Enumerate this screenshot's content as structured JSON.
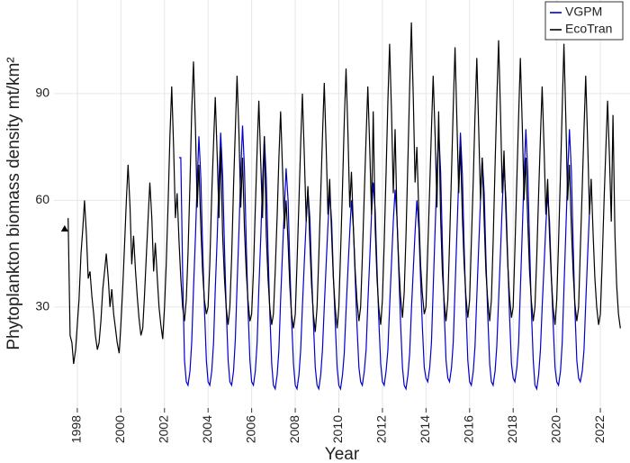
{
  "chart_data": {
    "type": "line",
    "xlabel": "Year",
    "ylabel": "Phytoplankton biomass density mt/km²",
    "xlim": [
      1996.93,
      2023.36
    ],
    "ylim": [
      1.6,
      116.3
    ],
    "xticks": [
      1998,
      2000,
      2002,
      2004,
      2006,
      2008,
      2010,
      2012,
      2014,
      2016,
      2018,
      2020,
      2022
    ],
    "yticks": [
      30,
      60,
      90
    ],
    "grid": true,
    "legend": "top-right",
    "marker": {
      "x": 1997.42,
      "y": 52,
      "color": "#000000"
    },
    "x": [
      1997.58,
      1997.67,
      1997.75,
      1997.83,
      1997.92,
      1998,
      1998.08,
      1998.17,
      1998.25,
      1998.33,
      1998.42,
      1998.5,
      1998.58,
      1998.67,
      1998.75,
      1998.83,
      1998.92,
      1999,
      1999.08,
      1999.17,
      1999.25,
      1999.33,
      1999.42,
      1999.5,
      1999.58,
      1999.67,
      1999.75,
      1999.83,
      1999.92,
      2000,
      2000.08,
      2000.17,
      2000.25,
      2000.33,
      2000.42,
      2000.5,
      2000.58,
      2000.67,
      2000.75,
      2000.83,
      2000.92,
      2001,
      2001.08,
      2001.17,
      2001.25,
      2001.33,
      2001.42,
      2001.5,
      2001.58,
      2001.67,
      2001.75,
      2001.83,
      2001.92,
      2002,
      2002.08,
      2002.17,
      2002.25,
      2002.33,
      2002.42,
      2002.5,
      2002.58,
      2002.67,
      2002.75,
      2002.83,
      2002.92,
      2003,
      2003.08,
      2003.17,
      2003.25,
      2003.33,
      2003.42,
      2003.5,
      2003.58,
      2003.67,
      2003.75,
      2003.83,
      2003.92,
      2004,
      2004.08,
      2004.17,
      2004.25,
      2004.33,
      2004.42,
      2004.5,
      2004.58,
      2004.67,
      2004.75,
      2004.83,
      2004.92,
      2005,
      2005.08,
      2005.17,
      2005.25,
      2005.33,
      2005.42,
      2005.5,
      2005.58,
      2005.67,
      2005.75,
      2005.83,
      2005.92,
      2006,
      2006.08,
      2006.17,
      2006.25,
      2006.33,
      2006.42,
      2006.5,
      2006.58,
      2006.67,
      2006.75,
      2006.83,
      2006.92,
      2007,
      2007.08,
      2007.17,
      2007.25,
      2007.33,
      2007.42,
      2007.5,
      2007.58,
      2007.67,
      2007.75,
      2007.83,
      2007.92,
      2008,
      2008.08,
      2008.17,
      2008.25,
      2008.33,
      2008.42,
      2008.5,
      2008.58,
      2008.67,
      2008.75,
      2008.83,
      2008.92,
      2009,
      2009.08,
      2009.17,
      2009.25,
      2009.33,
      2009.42,
      2009.5,
      2009.58,
      2009.67,
      2009.75,
      2009.83,
      2009.92,
      2010,
      2010.08,
      2010.17,
      2010.25,
      2010.33,
      2010.42,
      2010.5,
      2010.58,
      2010.67,
      2010.75,
      2010.83,
      2010.92,
      2011,
      2011.08,
      2011.17,
      2011.25,
      2011.33,
      2011.42,
      2011.5,
      2011.58,
      2011.67,
      2011.75,
      2011.83,
      2011.92,
      2012,
      2012.08,
      2012.17,
      2012.25,
      2012.33,
      2012.42,
      2012.5,
      2012.58,
      2012.67,
      2012.75,
      2012.83,
      2012.92,
      2013,
      2013.08,
      2013.17,
      2013.25,
      2013.33,
      2013.42,
      2013.5,
      2013.58,
      2013.67,
      2013.75,
      2013.83,
      2013.92,
      2014,
      2014.08,
      2014.17,
      2014.25,
      2014.33,
      2014.42,
      2014.5,
      2014.58,
      2014.67,
      2014.75,
      2014.83,
      2014.92,
      2015,
      2015.08,
      2015.17,
      2015.25,
      2015.33,
      2015.42,
      2015.5,
      2015.58,
      2015.67,
      2015.75,
      2015.83,
      2015.92,
      2016,
      2016.08,
      2016.17,
      2016.25,
      2016.33,
      2016.42,
      2016.5,
      2016.58,
      2016.67,
      2016.75,
      2016.83,
      2016.92,
      2017,
      2017.08,
      2017.17,
      2017.25,
      2017.33,
      2017.42,
      2017.5,
      2017.58,
      2017.67,
      2017.75,
      2017.83,
      2017.92,
      2018,
      2018.08,
      2018.17,
      2018.25,
      2018.33,
      2018.42,
      2018.5,
      2018.58,
      2018.67,
      2018.75,
      2018.83,
      2018.92,
      2019,
      2019.08,
      2019.17,
      2019.25,
      2019.33,
      2019.42,
      2019.5,
      2019.58,
      2019.67,
      2019.75,
      2019.83,
      2019.92,
      2020,
      2020.08,
      2020.17,
      2020.25,
      2020.33,
      2020.42,
      2020.5,
      2020.58,
      2020.67,
      2020.75,
      2020.83,
      2020.92,
      2021,
      2021.08,
      2021.17,
      2021.25,
      2021.33,
      2021.42,
      2021.5,
      2021.58,
      2021.67,
      2021.75,
      2021.83,
      2021.92,
      2022,
      2022.08,
      2022.17,
      2022.25,
      2022.33,
      2022.42,
      2022.5,
      2022.58,
      2022.67,
      2022.75,
      2022.83,
      2022.92
    ],
    "series": [
      {
        "name": "VGPM",
        "color": "#0000cc",
        "values": [
          null,
          null,
          null,
          null,
          null,
          null,
          null,
          null,
          null,
          null,
          null,
          null,
          null,
          null,
          null,
          null,
          null,
          null,
          null,
          null,
          null,
          null,
          null,
          null,
          null,
          null,
          null,
          null,
          null,
          null,
          null,
          null,
          null,
          null,
          null,
          null,
          null,
          null,
          null,
          null,
          null,
          null,
          null,
          null,
          null,
          null,
          null,
          null,
          null,
          null,
          null,
          null,
          null,
          null,
          null,
          null,
          null,
          null,
          null,
          null,
          null,
          72,
          72,
          40,
          15,
          9,
          8,
          12,
          20,
          35,
          50,
          65,
          78,
          66,
          47,
          30,
          15,
          9,
          8,
          12,
          20,
          35,
          50,
          66,
          79,
          67,
          47,
          30,
          15,
          9,
          8,
          12,
          21,
          36,
          52,
          68,
          81,
          69,
          48,
          30,
          15,
          9,
          8,
          12,
          20,
          35,
          50,
          65,
          78,
          66,
          46,
          29,
          14,
          8,
          7,
          11,
          18,
          32,
          46,
          58,
          69,
          60,
          42,
          27,
          14,
          8,
          7,
          11,
          18,
          30,
          43,
          54,
          63,
          55,
          40,
          26,
          13,
          8,
          7,
          11,
          18,
          30,
          42,
          53,
          62,
          54,
          39,
          26,
          13,
          8,
          7,
          11,
          17,
          29,
          41,
          51,
          60,
          52,
          38,
          25,
          13,
          9,
          8,
          12,
          18,
          31,
          44,
          56,
          65,
          57,
          41,
          27,
          14,
          9,
          8,
          12,
          18,
          30,
          43,
          54,
          63,
          55,
          40,
          26,
          13,
          8,
          7,
          11,
          17,
          29,
          41,
          51,
          60,
          52,
          38,
          25,
          13,
          10,
          9,
          13,
          20,
          35,
          52,
          67,
          80,
          68,
          48,
          30,
          15,
          10,
          9,
          13,
          20,
          35,
          51,
          66,
          79,
          67,
          47,
          30,
          15,
          9,
          8,
          12,
          19,
          33,
          47,
          60,
          72,
          62,
          44,
          28,
          14,
          9,
          8,
          12,
          19,
          32,
          46,
          59,
          70,
          60,
          43,
          28,
          14,
          10,
          9,
          13,
          20,
          35,
          52,
          67,
          80,
          68,
          48,
          30,
          15,
          8,
          7,
          11,
          18,
          30,
          42,
          53,
          62,
          54,
          39,
          26,
          13,
          9,
          8,
          12,
          20,
          35,
          52,
          67,
          80,
          68,
          48,
          30,
          15,
          10,
          9,
          12,
          18,
          31,
          45,
          57,
          66,
          null,
          null,
          null,
          null,
          null,
          null,
          null,
          null,
          null,
          null,
          null,
          null,
          null,
          null,
          null,
          null
        ]
      },
      {
        "name": "EcoTran",
        "color": "#000000",
        "values": [
          55,
          22,
          20,
          14,
          18,
          25,
          32,
          45,
          52,
          60,
          50,
          38,
          40,
          33,
          28,
          22,
          18,
          20,
          26,
          35,
          40,
          45,
          38,
          30,
          35,
          28,
          24,
          20,
          17,
          25,
          35,
          48,
          60,
          70,
          58,
          42,
          50,
          40,
          33,
          27,
          22,
          24,
          33,
          45,
          55,
          65,
          55,
          40,
          48,
          38,
          30,
          25,
          21,
          30,
          42,
          60,
          78,
          92,
          75,
          55,
          62,
          48,
          38,
          30,
          26,
          32,
          45,
          65,
          85,
          99,
          80,
          58,
          70,
          52,
          40,
          32,
          28,
          30,
          42,
          62,
          76,
          89,
          72,
          55,
          75,
          50,
          38,
          30,
          25,
          30,
          44,
          64,
          80,
          95,
          78,
          58,
          72,
          52,
          40,
          32,
          26,
          28,
          40,
          58,
          74,
          88,
          70,
          55,
          78,
          50,
          38,
          30,
          25,
          28,
          40,
          56,
          72,
          85,
          68,
          52,
          60,
          48,
          36,
          28,
          24,
          28,
          42,
          60,
          76,
          90,
          72,
          54,
          64,
          48,
          36,
          28,
          23,
          30,
          44,
          62,
          78,
          93,
          75,
          56,
          66,
          50,
          38,
          30,
          24,
          30,
          45,
          64,
          82,
          97,
          78,
          58,
          68,
          52,
          40,
          32,
          26,
          30,
          44,
          62,
          78,
          92,
          74,
          56,
          85,
          52,
          38,
          30,
          25,
          32,
          48,
          68,
          88,
          104,
          84,
          62,
          80,
          55,
          42,
          33,
          27,
          34,
          50,
          72,
          92,
          110,
          88,
          65,
          75,
          56,
          42,
          34,
          28,
          30,
          46,
          64,
          80,
          95,
          78,
          58,
          85,
          55,
          40,
          32,
          26,
          32,
          48,
          68,
          86,
          103,
          82,
          62,
          75,
          55,
          42,
          33,
          27,
          32,
          48,
          66,
          84,
          100,
          80,
          60,
          72,
          54,
          40,
          32,
          26,
          32,
          48,
          70,
          88,
          105,
          84,
          62,
          74,
          56,
          42,
          33,
          27,
          30,
          46,
          66,
          84,
          100,
          80,
          60,
          72,
          54,
          40,
          32,
          26,
          30,
          44,
          62,
          78,
          92,
          74,
          56,
          66,
          50,
          38,
          30,
          25,
          32,
          48,
          68,
          86,
          104,
          82,
          60,
          70,
          52,
          40,
          31,
          26,
          30,
          46,
          64,
          80,
          95,
          76,
          56,
          66,
          50,
          38,
          30,
          25,
          28,
          42,
          60,
          74,
          88,
          72,
          54,
          84,
          50,
          36,
          28,
          24
        ]
      }
    ]
  }
}
